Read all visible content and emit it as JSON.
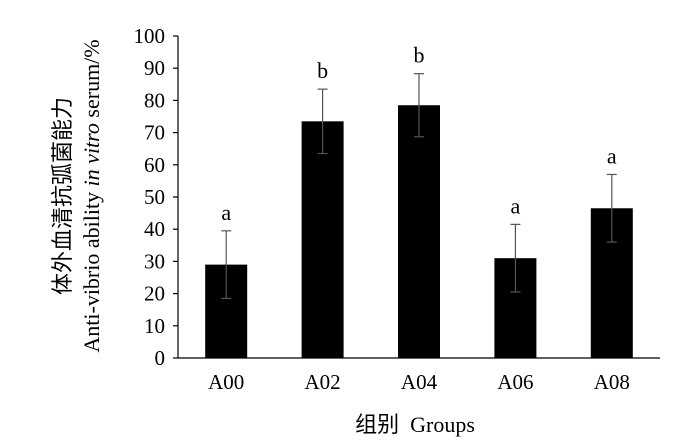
{
  "chart_data": {
    "type": "bar",
    "categories": [
      "A00",
      "A02",
      "A04",
      "A06",
      "A08"
    ],
    "values": [
      29,
      73.5,
      78.5,
      31,
      46.5
    ],
    "error": [
      10.5,
      10,
      9.8,
      10.5,
      10.5
    ],
    "significance": [
      "a",
      "b",
      "b",
      "a",
      "a"
    ],
    "ylim": [
      0,
      100
    ],
    "yticks": [
      0,
      10,
      20,
      30,
      40,
      50,
      60,
      70,
      80,
      90,
      100
    ],
    "ylabel_line1": "体外血清抗弧菌能力",
    "ylabel_line2_pre": "Anti-vibrio ability ",
    "ylabel_line2_italic": "in vitro",
    "ylabel_line2_post": " serum/%",
    "xlabel": "组别  Groups",
    "bar_color": "#000000",
    "grid": false,
    "legend": "none"
  }
}
